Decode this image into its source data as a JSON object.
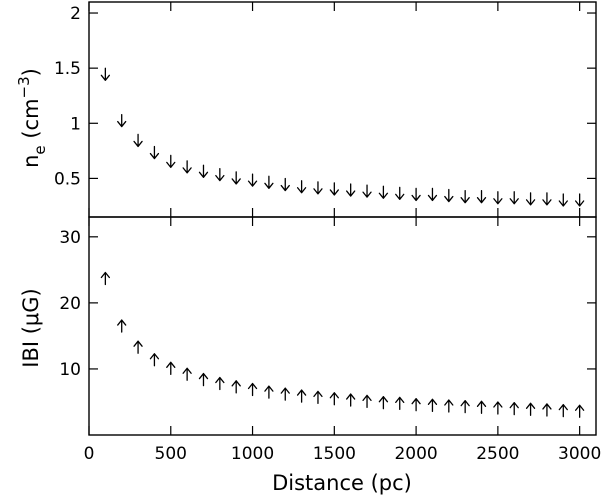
{
  "chart_data": [
    {
      "type": "scatter",
      "marker": "upper-limit-arrow",
      "ylabel_main": "n",
      "ylabel_sub": "e",
      "ylabel_unit": "(cm",
      "ylabel_exp": "−3",
      "ylabel_close": ")",
      "ylim": [
        0.15,
        2.1
      ],
      "yticks": [
        0.5,
        1,
        1.5,
        2
      ],
      "ytick_labels": [
        "0.5",
        "1",
        "1.5",
        "2"
      ],
      "x": [
        100,
        200,
        300,
        400,
        500,
        600,
        700,
        800,
        900,
        1000,
        1100,
        1200,
        1300,
        1400,
        1500,
        1600,
        1700,
        1800,
        1900,
        2000,
        2100,
        2200,
        2300,
        2400,
        2500,
        2600,
        2700,
        2800,
        2900,
        3000
      ],
      "values": [
        1.39,
        0.97,
        0.79,
        0.68,
        0.6,
        0.55,
        0.51,
        0.48,
        0.45,
        0.43,
        0.41,
        0.39,
        0.37,
        0.36,
        0.35,
        0.34,
        0.33,
        0.32,
        0.31,
        0.3,
        0.3,
        0.29,
        0.28,
        0.28,
        0.27,
        0.27,
        0.26,
        0.26,
        0.25,
        0.25
      ]
    },
    {
      "type": "scatter",
      "marker": "lower-limit-arrow",
      "ylabel_main": "IBI",
      "ylabel_unit": "(μG)",
      "ylim": [
        0,
        33
      ],
      "yticks": [
        10,
        20,
        30
      ],
      "ytick_labels": [
        "10",
        "20",
        "30"
      ],
      "x": [
        100,
        200,
        300,
        400,
        500,
        600,
        700,
        800,
        900,
        1000,
        1100,
        1200,
        1300,
        1400,
        1500,
        1600,
        1700,
        1800,
        1900,
        2000,
        2100,
        2200,
        2300,
        2400,
        2500,
        2600,
        2700,
        2800,
        2900,
        3000
      ],
      "values": [
        24.6,
        17.4,
        14.2,
        12.3,
        11.0,
        10.1,
        9.3,
        8.7,
        8.2,
        7.8,
        7.4,
        7.1,
        6.8,
        6.6,
        6.4,
        6.2,
        6.0,
        5.8,
        5.7,
        5.5,
        5.4,
        5.3,
        5.2,
        5.1,
        5.0,
        4.9,
        4.8,
        4.7,
        4.6,
        4.5
      ]
    }
  ],
  "x_axis": {
    "label": "Distance (pc)",
    "xlim": [
      0,
      3100
    ],
    "ticks": [
      0,
      500,
      1000,
      1500,
      2000,
      2500,
      3000
    ],
    "tick_labels": [
      "0",
      "500",
      "1000",
      "1500",
      "2000",
      "2500",
      "3000"
    ]
  }
}
